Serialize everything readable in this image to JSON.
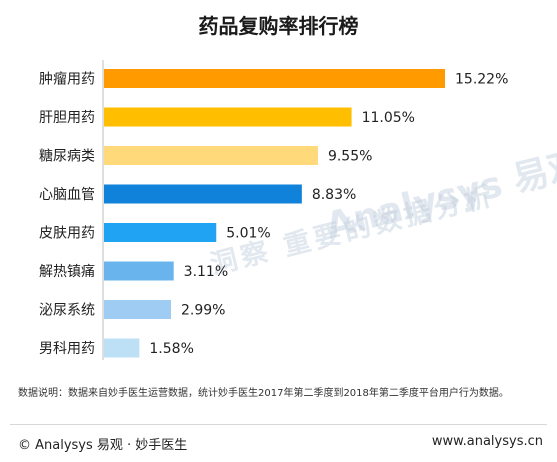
{
  "watermark": {
    "brand": "Analysys 易观",
    "slogan": "洞察 重要的数据分析"
  },
  "note": "数据说明：数据来自妙手医生运营数据，统计妙手医生2017年第二季度到2018年第二季度平台用户行为数据。",
  "footer": {
    "left": "© Analysys 易观 · 妙手医生",
    "right": "www.analysys.cn"
  },
  "chart_data": {
    "type": "bar",
    "orientation": "horizontal",
    "title": "药品复购率排行榜",
    "categories": [
      "肿瘤用药",
      "肝胆用药",
      "糖尿病类",
      "心脑血管",
      "皮肤用药",
      "解热镇痛",
      "泌尿系统",
      "男科用药"
    ],
    "values": [
      15.22,
      11.05,
      9.55,
      8.83,
      5.01,
      3.11,
      2.99,
      1.58
    ],
    "labels": [
      "15.22%",
      "11.05%",
      "9.55%",
      "8.83%",
      "5.01%",
      "3.11%",
      "2.99%",
      "1.58%"
    ],
    "colors": [
      "#FF9A00",
      "#FFBE00",
      "#FFD97A",
      "#1182D9",
      "#1FA3F2",
      "#6AB4EE",
      "#9FCCF3",
      "#BEE0F7"
    ],
    "xlim": [
      0,
      15.22
    ],
    "grid": false,
    "legend": "none"
  }
}
